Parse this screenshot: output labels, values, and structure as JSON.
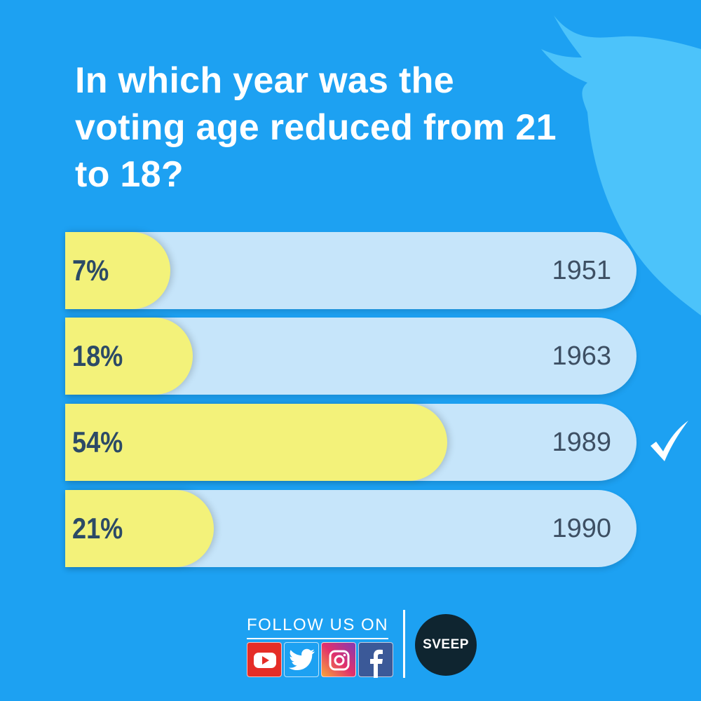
{
  "question": "In which year was the voting age reduced from 21 to 18?",
  "chart_data": {
    "type": "bar",
    "orientation": "horizontal",
    "categories": [
      "1951",
      "1963",
      "1989",
      "1990"
    ],
    "values": [
      7,
      18,
      54,
      21
    ],
    "value_labels": [
      "7%",
      "18%",
      "54%",
      "21%"
    ],
    "unit": "%",
    "correct_answer": "1989"
  },
  "colors": {
    "background": "#1da1f2",
    "fill": "#f3f27a",
    "track": "#c6e5fa"
  },
  "footer": {
    "follow_label": "FOLLOW US ON",
    "socials": [
      "youtube-icon",
      "twitter-icon",
      "instagram-icon",
      "facebook-icon"
    ],
    "logo_text": "SVEEP"
  }
}
